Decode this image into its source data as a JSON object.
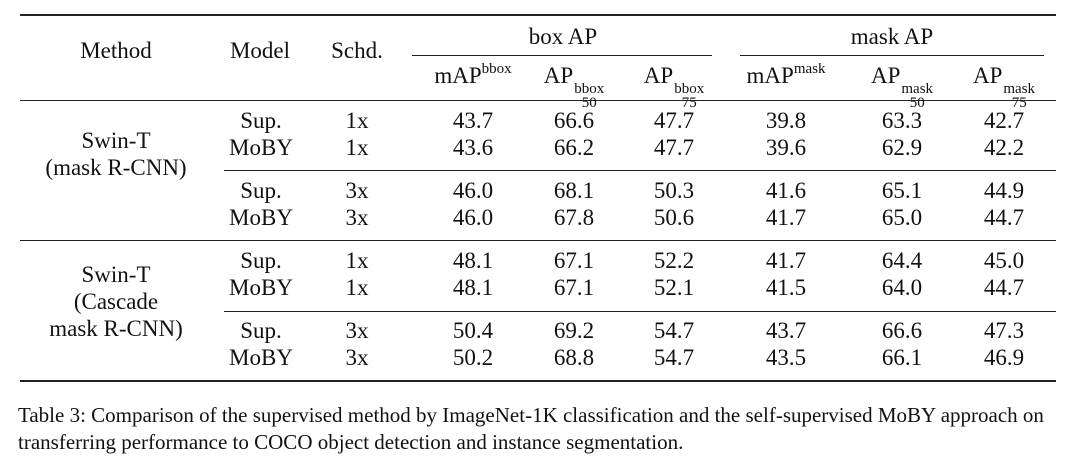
{
  "header": {
    "method": "Method",
    "model": "Model",
    "schd": "Schd.",
    "box_group": "box AP",
    "mask_group": "mask AP",
    "cols": [
      {
        "base": "mAP",
        "sup": "bbox",
        "sub": ""
      },
      {
        "base": "AP",
        "sup": "bbox",
        "sub": "50"
      },
      {
        "base": "AP",
        "sup": "bbox",
        "sub": "75"
      },
      {
        "base": "mAP",
        "sup": "mask",
        "sub": ""
      },
      {
        "base": "AP",
        "sup": "mask",
        "sub": "50"
      },
      {
        "base": "AP",
        "sup": "mask",
        "sub": "75"
      }
    ]
  },
  "groups": [
    {
      "method_lines": [
        "Swin-T",
        "(mask R-CNN)"
      ],
      "rows": [
        {
          "model": "Sup.",
          "schd": "1x",
          "vals": [
            "43.7",
            "66.6",
            "47.7",
            "39.8",
            "63.3",
            "42.7"
          ]
        },
        {
          "model": "MoBY",
          "schd": "1x",
          "vals": [
            "43.6",
            "66.2",
            "47.7",
            "39.6",
            "62.9",
            "42.2"
          ]
        },
        {
          "model": "Sup.",
          "schd": "3x",
          "vals": [
            "46.0",
            "68.1",
            "50.3",
            "41.6",
            "65.1",
            "44.9"
          ]
        },
        {
          "model": "MoBY",
          "schd": "3x",
          "vals": [
            "46.0",
            "67.8",
            "50.6",
            "41.7",
            "65.0",
            "44.7"
          ]
        }
      ]
    },
    {
      "method_lines": [
        "Swin-T",
        "(Cascade",
        "mask R-CNN)"
      ],
      "rows": [
        {
          "model": "Sup.",
          "schd": "1x",
          "vals": [
            "48.1",
            "67.1",
            "52.2",
            "41.7",
            "64.4",
            "45.0"
          ]
        },
        {
          "model": "MoBY",
          "schd": "1x",
          "vals": [
            "48.1",
            "67.1",
            "52.1",
            "41.5",
            "64.0",
            "44.7"
          ]
        },
        {
          "model": "Sup.",
          "schd": "3x",
          "vals": [
            "50.4",
            "69.2",
            "54.7",
            "43.7",
            "66.6",
            "47.3"
          ]
        },
        {
          "model": "MoBY",
          "schd": "3x",
          "vals": [
            "50.2",
            "68.8",
            "54.7",
            "43.5",
            "66.1",
            "46.9"
          ]
        }
      ]
    }
  ],
  "caption": "Table 3: Comparison of the supervised method by ImageNet-1K classification and the self-supervised MoBY approach on transferring performance to COCO object detection and instance segmentation."
}
